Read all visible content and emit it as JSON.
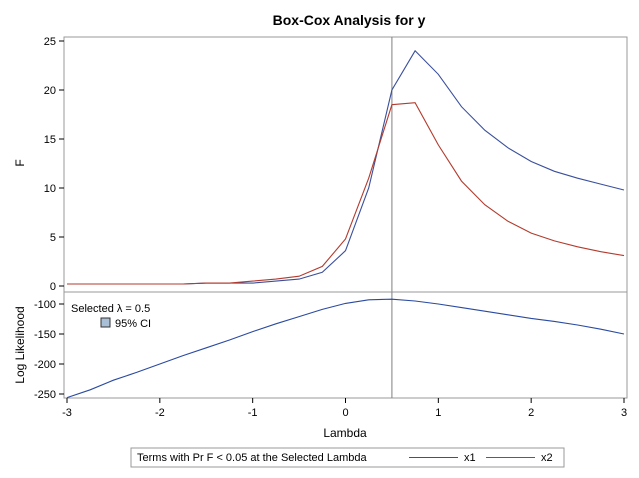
{
  "chart_data": {
    "type": "line",
    "title": "Box-Cox Analysis for y",
    "xlabel": "Lambda",
    "xlim": [
      -3,
      3
    ],
    "x_ticks": [
      -3,
      -2,
      -1,
      0,
      1,
      2,
      3
    ],
    "selected_lambda": 0.5,
    "colors": {
      "x1": "#3a4f9c",
      "x2": "#b23b2d",
      "loglik": "#2a4aa0",
      "refline": "#7f7f7f",
      "frame": "#999999"
    },
    "panels": [
      {
        "name": "F",
        "ylabel": "F",
        "ylim": [
          0,
          25
        ],
        "y_ticks": [
          0,
          5,
          10,
          15,
          20,
          25
        ],
        "x": [
          -3,
          -2.75,
          -2.5,
          -2.25,
          -2,
          -1.75,
          -1.5,
          -1.25,
          -1,
          -0.75,
          -0.5,
          -0.25,
          0,
          0.25,
          0.5,
          0.75,
          1,
          1.25,
          1.5,
          1.75,
          2,
          2.25,
          2.5,
          2.75,
          3
        ],
        "series": [
          {
            "name": "x1",
            "values": [
              0.2,
              0.2,
              0.2,
              0.2,
              0.2,
              0.2,
              0.3,
              0.3,
              0.3,
              0.5,
              0.7,
              1.4,
              3.6,
              10.0,
              20.0,
              24.0,
              21.6,
              18.3,
              15.9,
              14.1,
              12.7,
              11.7,
              11.0,
              10.4,
              9.8
            ]
          },
          {
            "name": "x2",
            "values": [
              0.2,
              0.2,
              0.2,
              0.2,
              0.2,
              0.2,
              0.3,
              0.3,
              0.5,
              0.7,
              1.0,
              2.0,
              4.8,
              11.0,
              18.5,
              18.7,
              14.4,
              10.7,
              8.3,
              6.6,
              5.4,
              4.6,
              4.0,
              3.5,
              3.1
            ]
          }
        ]
      },
      {
        "name": "Log Likelihood",
        "ylabel": "Log Likelihood",
        "ylim": [
          -260,
          -80
        ],
        "y_ticks": [
          -250,
          -200,
          -150,
          -100
        ],
        "x": [
          -3,
          -2.75,
          -2.5,
          -2.25,
          -2,
          -1.75,
          -1.5,
          -1.25,
          -1,
          -0.75,
          -0.5,
          -0.25,
          0,
          0.25,
          0.5,
          0.75,
          1,
          1.25,
          1.5,
          1.75,
          2,
          2.25,
          2.5,
          2.75,
          3
        ],
        "series": [
          {
            "values": [
              -256,
              -243,
              -227,
              -214,
              -200,
              -186,
              -173,
              -160,
              -146,
              -133,
              -121,
              -109,
              -99,
              -93,
              -92,
              -95,
              -100,
              -106,
              -112,
              -118,
              -124,
              -129,
              -135,
              -142,
              -150
            ]
          }
        ],
        "annotation": {
          "selected_label": "Selected λ = 0.5",
          "ci_label": "95% CI"
        }
      }
    ],
    "legend": {
      "title": "Terms with Pr F < 0.05 at the Selected Lambda",
      "entries": [
        {
          "name": "x1"
        },
        {
          "name": "x2"
        }
      ],
      "position": "bottom"
    }
  }
}
